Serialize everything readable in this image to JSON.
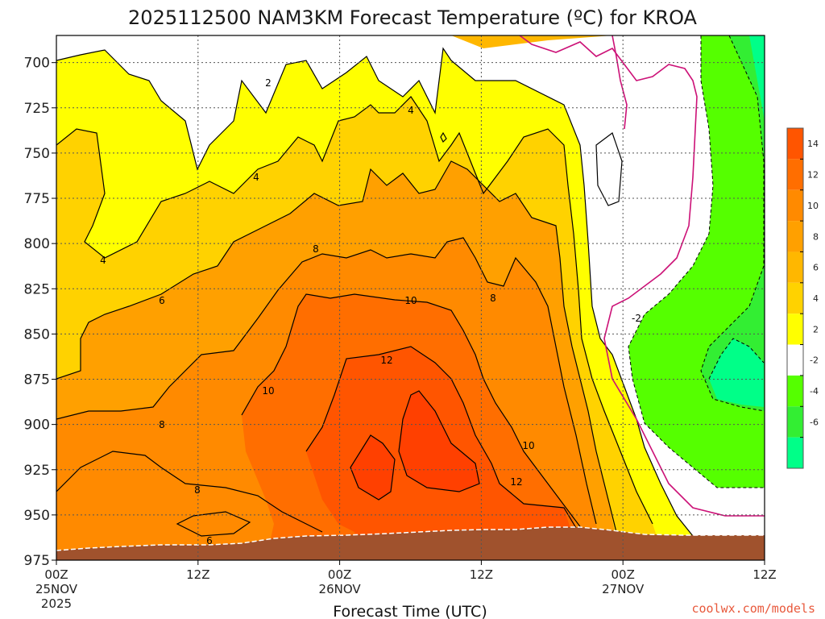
{
  "title": "2025112500 NAM3KM Forecast Temperature (ºC) for KROA",
  "credit": "coolwx.com/models",
  "chart_data": {
    "type": "heatmap",
    "title": "2025112500 NAM3KM Forecast Temperature (ºC) for KROA",
    "xlabel": "Forecast Time (UTC)",
    "ylabel": "",
    "y_ticks": [
      700,
      725,
      750,
      775,
      800,
      825,
      850,
      875,
      900,
      925,
      950,
      975
    ],
    "ylim": [
      975,
      685
    ],
    "x_ticks": [
      {
        "line1": "00Z",
        "line2": "25NOV",
        "line3": "2025"
      },
      {
        "line1": "12Z",
        "line2": "",
        "line3": ""
      },
      {
        "line1": "00Z",
        "line2": "26NOV",
        "line3": ""
      },
      {
        "line1": "12Z",
        "line2": "",
        "line3": ""
      },
      {
        "line1": "00Z",
        "line2": "27NOV",
        "line3": ""
      },
      {
        "line1": "12Z",
        "line2": "",
        "line3": ""
      }
    ],
    "grid": true,
    "colorbar": {
      "position": "right",
      "tick_labels": [
        "14",
        "12",
        "10",
        "8",
        "6",
        "4",
        "2",
        "-2",
        "-4",
        "-6"
      ],
      "colors": [
        "#ff5500",
        "#ff6e00",
        "#ff8a00",
        "#ffa000",
        "#ffb700",
        "#ffd200",
        "#ffff00",
        "#ffffff",
        "#55ff00",
        "#33ee33",
        "#00ff88"
      ]
    },
    "contour_labels": [
      "2",
      "4",
      "4",
      "4",
      "6",
      "8",
      "8",
      "10",
      "8",
      "10",
      "12",
      "8",
      "8",
      "10",
      "12",
      "6",
      "-2"
    ],
    "terrain_color": "#a0522d"
  }
}
